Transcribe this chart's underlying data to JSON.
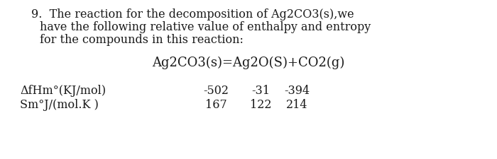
{
  "bg_color": "#ffffff",
  "text_color": "#1a1a1a",
  "line1": "9.  The reaction for the decomposition of Ag2CO3(s),we",
  "line2": "have the following relative value of enthalpy and entropy",
  "line3": "for the compounds in this reaction:",
  "equation": "Ag2CO3(s)=Ag2O(S)+CO2(g)",
  "label1": "ΔfHm°(KJ/mol)",
  "label2": "Sm°J/(mol.K )",
  "val1_row1": "-502",
  "val2_row1": "-31",
  "val3_row1": "-394",
  "val1_row2": "167",
  "val2_row2": "122",
  "val3_row2": "214",
  "font_size_body": 11.5,
  "font_size_eq": 13,
  "font_size_table": 11.5
}
